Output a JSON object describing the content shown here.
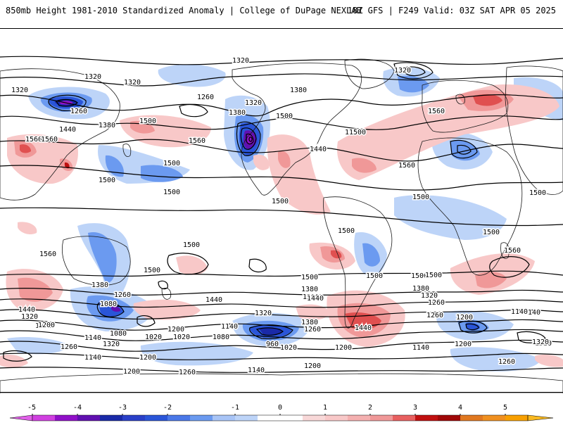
{
  "header": {
    "title_left": "850mb Height 1981-2010 Standardized Anomaly | College of DuPage NEXLAB",
    "title_right": "18Z GFS | F249 Valid: 03Z SAT APR 05 2025"
  },
  "colors": {
    "neg5": "#e060e8",
    "neg4_5": "#9010c8",
    "neg4": "#6010b0",
    "neg3_5": "#1a2aa8",
    "neg3": "#2a55d8",
    "neg2": "#6b9af0",
    "neg1": "#bdd4f8",
    "pos1": "#f8c8c8",
    "pos2": "#f09898",
    "pos3": "#e05050",
    "pos4": "#c01010",
    "pos4_5": "#d86020",
    "pos5": "#f8a000",
    "contour": "#000000",
    "land_outline": "#1a1a1a"
  },
  "colorbar": {
    "ticks": [
      "-5",
      "-4",
      "-3",
      "-2",
      "-1",
      "0",
      "1",
      "2",
      "3",
      "4",
      "5"
    ]
  },
  "map": {
    "contour_labels": [
      "1320",
      "1320",
      "1320",
      "1320",
      "1320",
      "1320",
      "1260",
      "1260",
      "1380",
      "1380",
      "1380",
      "1440",
      "1500",
      "1500",
      "1560",
      "1560",
      "1500",
      "1500",
      "1560",
      "1560",
      "1440",
      "1500",
      "1500",
      "1500",
      "1500",
      "1500",
      "1440",
      "1500",
      "1500",
      "1560",
      "1380",
      "1320",
      "1260",
      "1200",
      "1140",
      "1080",
      "1020",
      "960",
      "1020",
      "1080",
      "1140",
      "1200",
      "1260",
      "1320",
      "1380",
      "1440",
      "1200",
      "1140",
      "1260",
      "1200",
      "1140",
      "1260",
      "1320",
      "1200",
      "1140",
      "1500",
      "1380",
      "1320",
      "1260",
      "1440",
      "1560",
      "1500",
      "1500",
      "1560",
      "1500",
      "1500",
      "1200",
      "1260",
      "1440",
      "1320",
      "1200",
      "1140",
      "1020",
      "1320",
      "1260",
      "1200",
      "1080",
      "1200",
      "1140",
      "1380",
      "1260",
      "1500",
      "1500"
    ]
  }
}
